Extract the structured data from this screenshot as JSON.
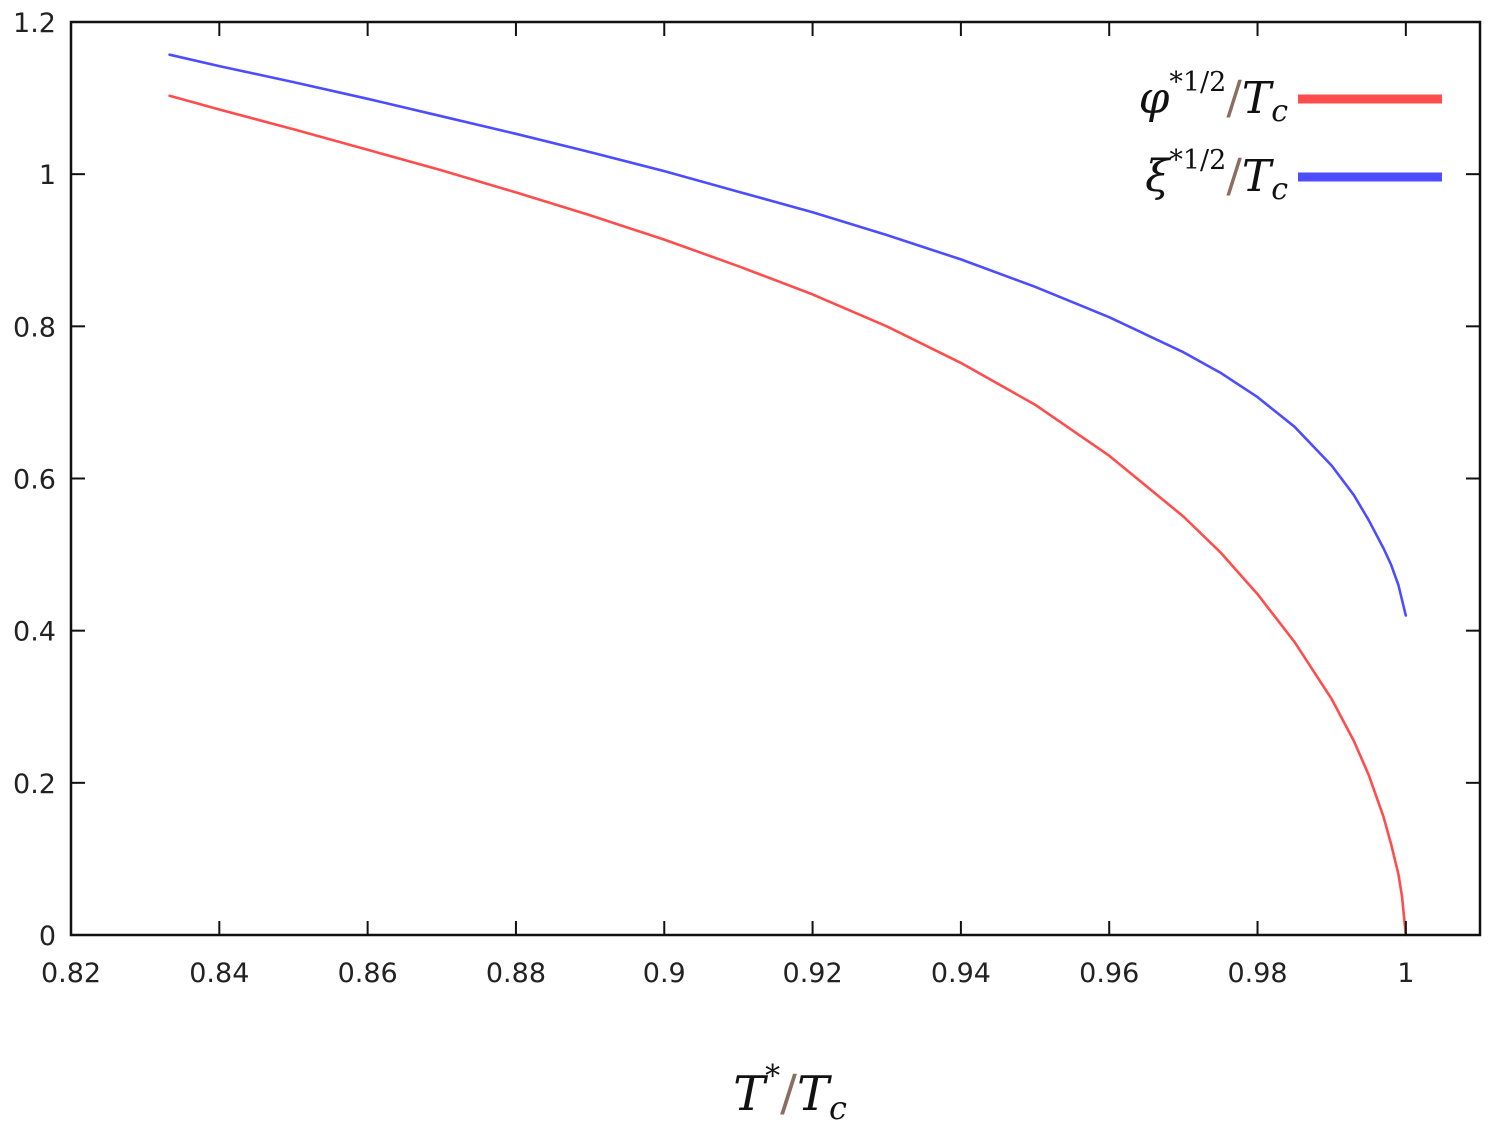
{
  "chart_data": {
    "type": "line",
    "xlabel": {
      "base": "T",
      "sup": "*",
      "slash": "/",
      "den": "T",
      "den_sub": "c"
    },
    "ylabel": "",
    "xlim": [
      0.82,
      1.01
    ],
    "ylim": [
      0,
      1.2
    ],
    "xticks": [
      0.82,
      0.84,
      0.86,
      0.88,
      0.9,
      0.92,
      0.94,
      0.96,
      0.98,
      1
    ],
    "xtick_labels": [
      "0.82",
      "0.84",
      "0.86",
      "0.88",
      "0.9",
      "0.92",
      "0.94",
      "0.96",
      "0.98",
      "1"
    ],
    "yticks": [
      0,
      0.2,
      0.4,
      0.6,
      0.8,
      1,
      1.2
    ],
    "ytick_labels": [
      "0",
      "0.2",
      "0.4",
      "0.6",
      "0.8",
      "1",
      "1.2"
    ],
    "grid": false,
    "legend_position": "top-right",
    "series": [
      {
        "name": "φ*1/2/Tc",
        "legend": {
          "base": "φ",
          "sup": "*1/2",
          "slash": "/",
          "den": "T",
          "den_sub": "c"
        },
        "color": "#ff4d4d",
        "x": [
          0.8333,
          0.84,
          0.85,
          0.86,
          0.87,
          0.88,
          0.89,
          0.9,
          0.91,
          0.92,
          0.93,
          0.94,
          0.95,
          0.96,
          0.97,
          0.975,
          0.98,
          0.985,
          0.99,
          0.993,
          0.995,
          0.997,
          0.998,
          0.999,
          0.9995,
          1.0
        ],
        "y": [
          1.103,
          1.085,
          1.059,
          1.032,
          1.005,
          0.976,
          0.946,
          0.914,
          0.879,
          0.842,
          0.8,
          0.752,
          0.697,
          0.63,
          0.55,
          0.503,
          0.448,
          0.385,
          0.31,
          0.255,
          0.21,
          0.155,
          0.12,
          0.08,
          0.05,
          0.0
        ]
      },
      {
        "name": "ξ*1/2/Tc",
        "legend": {
          "base": "ξ",
          "sup": "*1/2",
          "slash": "/",
          "den": "T",
          "den_sub": "c"
        },
        "color": "#4d4dff",
        "x": [
          0.8333,
          0.84,
          0.85,
          0.86,
          0.87,
          0.88,
          0.89,
          0.9,
          0.91,
          0.92,
          0.93,
          0.94,
          0.95,
          0.96,
          0.97,
          0.975,
          0.98,
          0.985,
          0.99,
          0.993,
          0.995,
          0.997,
          0.998,
          0.999,
          1.0
        ],
        "y": [
          1.157,
          1.142,
          1.121,
          1.099,
          1.076,
          1.053,
          1.029,
          1.004,
          0.977,
          0.95,
          0.92,
          0.888,
          0.852,
          0.812,
          0.766,
          0.739,
          0.707,
          0.668,
          0.617,
          0.578,
          0.545,
          0.508,
          0.487,
          0.46,
          0.42
        ]
      }
    ]
  }
}
